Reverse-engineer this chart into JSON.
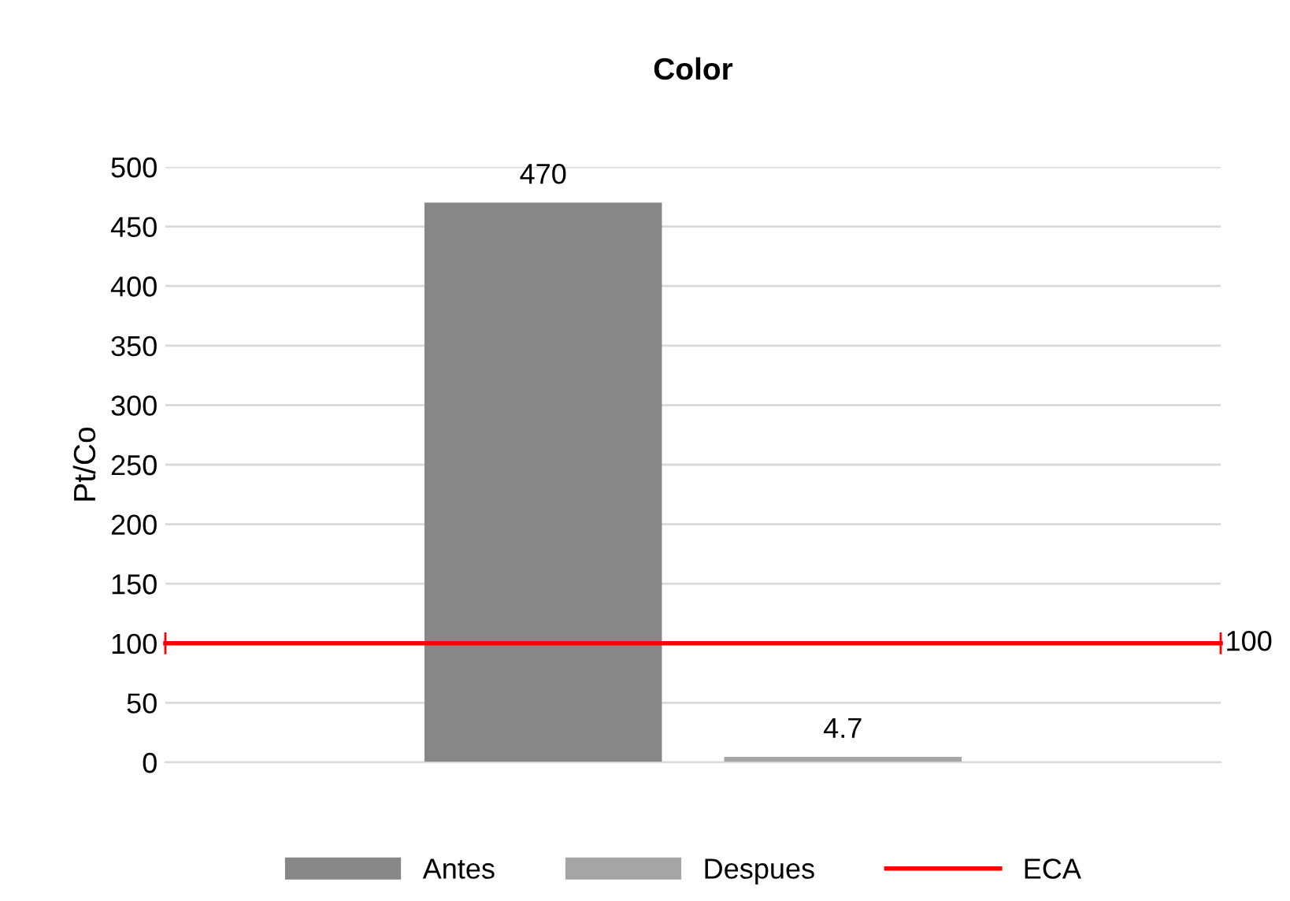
{
  "chart_data": {
    "type": "bar",
    "title": "Color",
    "ylabel": "Pt/Co",
    "categories": [
      null
    ],
    "series": [
      {
        "name": "Antes",
        "color": "#878787",
        "values": [
          470
        ]
      },
      {
        "name": "Despues",
        "color": "#a5a5a5",
        "values": [
          4.7
        ]
      }
    ],
    "data_labels": true,
    "ylim": [
      0,
      500
    ],
    "yticks": [
      0,
      50,
      100,
      150,
      200,
      250,
      300,
      350,
      400,
      450,
      500
    ],
    "grid": "y",
    "legend": "bottom",
    "ref_lines": [
      {
        "axis": "y",
        "value": 100,
        "label": "ECA",
        "color": "#ff0000",
        "line_style": "solid"
      }
    ],
    "annotations": [
      "100"
    ]
  }
}
